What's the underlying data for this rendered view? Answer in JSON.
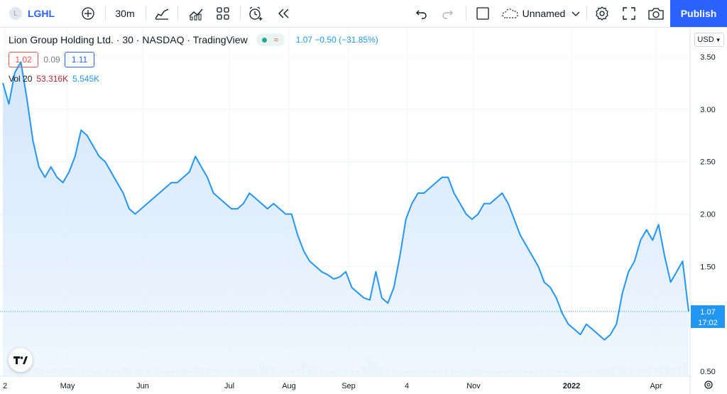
{
  "toolbar": {
    "symbol_badge": "L",
    "symbol": "LGHL",
    "interval": "30m",
    "layout_name": "Unnamed",
    "publish_label": "Publish",
    "icons": [
      "add-symbol-icon",
      "chart-style-icon",
      "indicators-icon",
      "templates-icon",
      "alert-icon",
      "replay-icon",
      "undo-icon",
      "redo-icon",
      "fullscreen-square-icon",
      "cloud-icon",
      "chevron-down-icon",
      "settings-icon",
      "fullscreen-icon",
      "camera-icon"
    ]
  },
  "legend": {
    "title": "Lion Group Holding Ltd. · 30 · NASDAQ · TradingView",
    "price_change": "1.07  −0.50 (−31.85%)",
    "bid": "1.02",
    "spread": "0.09",
    "ask": "1.11",
    "vol_label": "Vol 20",
    "vol_value": "53.316K",
    "vol_ma": "5.545K"
  },
  "currency": "USD",
  "price_tag": "1.07",
  "countdown": "17:02",
  "colors": {
    "line": "#2196f3",
    "area": "#e3f0fd",
    "accent": "#2962ff",
    "red": "#ef5350",
    "volume": "#b2dfdb"
  },
  "chart_data": {
    "type": "area",
    "title": "Lion Group Holding Ltd. · 30 · NASDAQ",
    "ylabel": "USD",
    "ylim": [
      0.5,
      3.6
    ],
    "y_ticks": [
      0.5,
      1.5,
      2.0,
      2.5,
      3.0,
      3.5
    ],
    "x_tick_labels": [
      "2",
      "May",
      "Jun",
      "Jul",
      "Aug",
      "Sep",
      "4",
      "Nov",
      "2022",
      "Apr"
    ],
    "x_tick_bold": [
      "2022"
    ],
    "series": [
      {
        "values": [
          3.25,
          3.05,
          3.35,
          3.45,
          3.1,
          2.7,
          2.45,
          2.35,
          2.45,
          2.35,
          2.3,
          2.4,
          2.55,
          2.8,
          2.75,
          2.65,
          2.55,
          2.5,
          2.4,
          2.3,
          2.2,
          2.05,
          2.0,
          2.05,
          2.1,
          2.15,
          2.2,
          2.25,
          2.3,
          2.3,
          2.35,
          2.4,
          2.55,
          2.45,
          2.35,
          2.2,
          2.15,
          2.1,
          2.05,
          2.05,
          2.1,
          2.2,
          2.15,
          2.1,
          2.05,
          2.1,
          2.05,
          2.0,
          2.0,
          1.8,
          1.65,
          1.55,
          1.5,
          1.45,
          1.42,
          1.38,
          1.4,
          1.45,
          1.3,
          1.25,
          1.2,
          1.18,
          1.45,
          1.2,
          1.15,
          1.3,
          1.6,
          1.95,
          2.1,
          2.2,
          2.2,
          2.25,
          2.3,
          2.35,
          2.35,
          2.2,
          2.1,
          2.0,
          1.95,
          2.0,
          2.1,
          2.1,
          2.15,
          2.2,
          2.1,
          1.95,
          1.8,
          1.7,
          1.6,
          1.5,
          1.35,
          1.3,
          1.2,
          1.05,
          0.95,
          0.9,
          0.85,
          0.95,
          0.9,
          0.85,
          0.8,
          0.85,
          0.95,
          1.25,
          1.45,
          1.55,
          1.75,
          1.85,
          1.75,
          1.9,
          1.6,
          1.35,
          1.45,
          1.55,
          1.07
        ]
      }
    ],
    "last_price": 1.07,
    "volume_ma": [
      0.12,
      0.14,
      0.11,
      0.1,
      0.12,
      0.14,
      0.11,
      0.1,
      0.13,
      0.12,
      0.15,
      0.13,
      0.11,
      0.12,
      0.1,
      0.09,
      0.11,
      0.12,
      0.1,
      0.09,
      0.14,
      0.12,
      0.1,
      0.11,
      0.12,
      0.13,
      0.1,
      0.09,
      0.1,
      0.11,
      0.12,
      0.1,
      0.14,
      0.16,
      0.13,
      0.12,
      0.11,
      0.1,
      0.09,
      0.1,
      0.11,
      0.12,
      0.13,
      0.25,
      0.18,
      0.14,
      0.12,
      0.11,
      0.1,
      0.12,
      0.3,
      0.2,
      0.14,
      0.12,
      0.1,
      0.09,
      0.11,
      0.12,
      0.1,
      0.09,
      0.2,
      0.4,
      0.25,
      0.15,
      0.12,
      0.11,
      0.1,
      0.09,
      0.1,
      0.11,
      0.12,
      0.1,
      0.09,
      0.1,
      0.11,
      0.12,
      0.1,
      0.09,
      0.1,
      0.11,
      0.1,
      0.09,
      0.08,
      0.09,
      0.1,
      0.11,
      0.12,
      0.1,
      0.09,
      0.1,
      0.11,
      0.12,
      0.1,
      0.09,
      0.1,
      0.11,
      0.1,
      0.09,
      0.1,
      0.11,
      0.12,
      0.13,
      0.15,
      0.14,
      0.13,
      0.12,
      0.11,
      0.12,
      0.14,
      0.16,
      0.2,
      0.18,
      0.15,
      0.14,
      0.25
    ],
    "grid": true,
    "legend": "top-left"
  }
}
